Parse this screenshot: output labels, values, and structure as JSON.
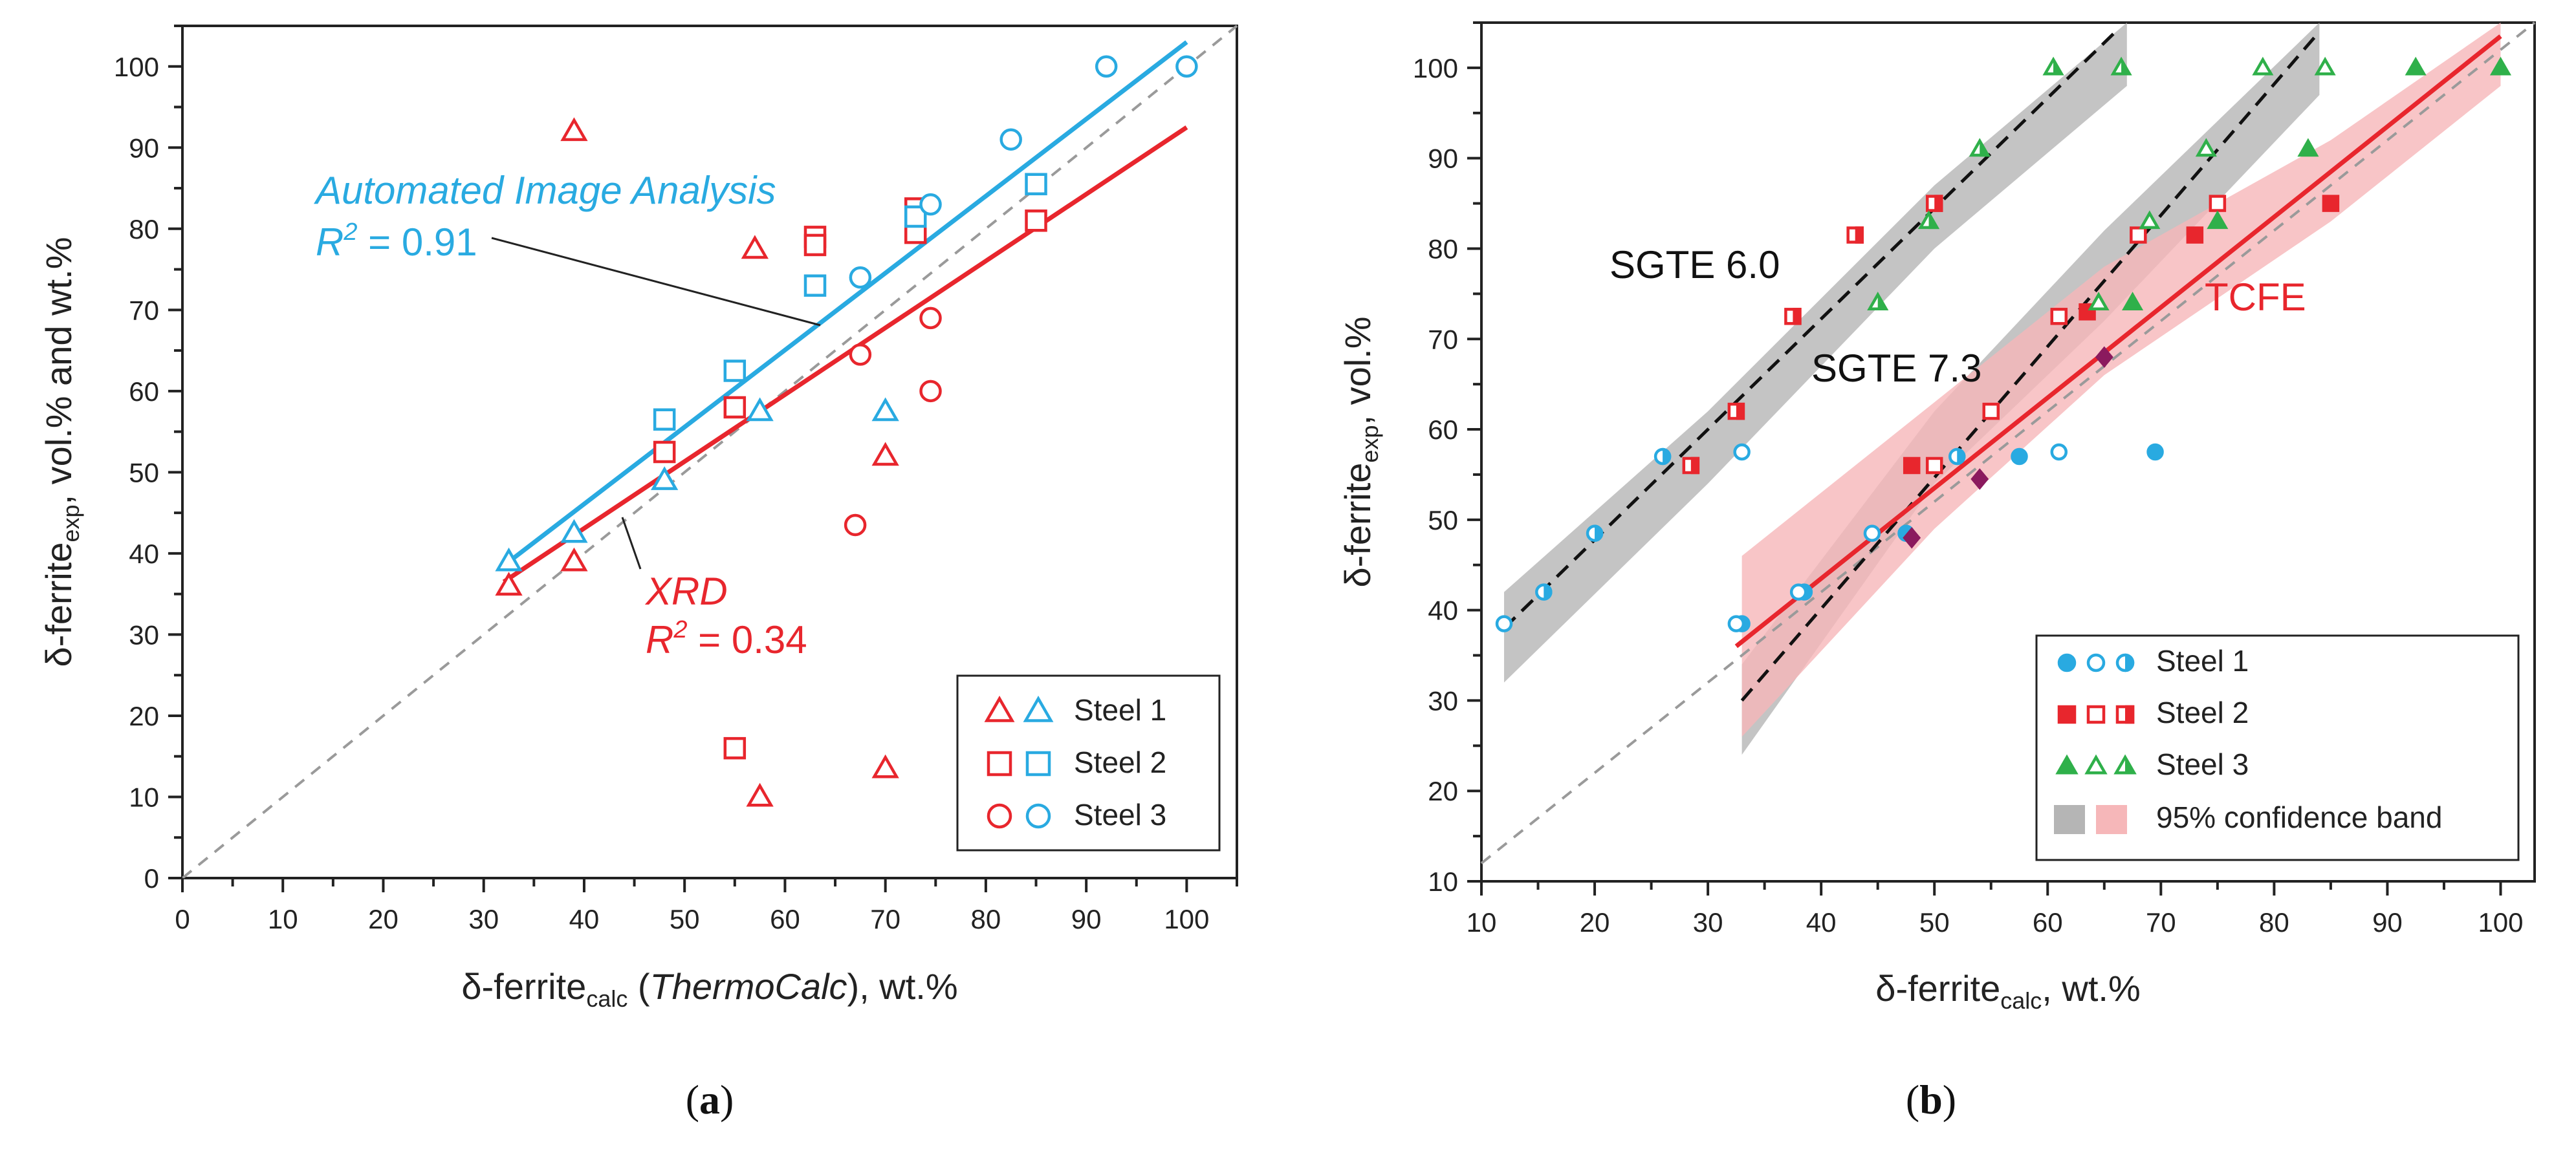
{
  "colors": {
    "red": "#e8262d",
    "blue": "#29aae1",
    "green": "#2fb04a",
    "purple": "#8b1a5e",
    "gray_dash": "#9a9a9a",
    "black_dash": "#111111",
    "gray_band": "#b5b5b5",
    "pink_band": "#f6b7b9"
  },
  "chart_data": [
    {
      "panel": "a",
      "type": "scatter",
      "panel_label": "a",
      "xlabel": {
        "main": "δ-ferrite",
        "sub": "calc",
        "italic": "ThermoCalc",
        "rest": ", wt.%"
      },
      "ylabel": {
        "main": "δ-ferrite",
        "sub": "exp",
        "rest": ", vol.% and wt.%"
      },
      "xlim": [
        0,
        105
      ],
      "ylim": [
        0,
        105
      ],
      "xticks": [
        0,
        10,
        20,
        30,
        40,
        50,
        60,
        70,
        80,
        90,
        100
      ],
      "yticks": [
        0,
        10,
        20,
        30,
        40,
        50,
        60,
        70,
        80,
        90,
        100
      ],
      "grid": false,
      "identity_line": [
        [
          0,
          0
        ],
        [
          105,
          105
        ]
      ],
      "series": [
        {
          "name": "XRD Steel 1",
          "color": "red",
          "marker": "triangle-open",
          "points": [
            [
              32.5,
              36
            ],
            [
              39,
              39
            ],
            [
              39,
              92
            ],
            [
              57.5,
              10
            ],
            [
              57,
              77.5
            ],
            [
              70,
              13.5
            ],
            [
              70,
              52
            ]
          ]
        },
        {
          "name": "XRD Steel 2",
          "color": "red",
          "marker": "square-open",
          "points": [
            [
              48,
              52.5
            ],
            [
              55,
              58
            ],
            [
              55,
              16
            ],
            [
              63,
              79
            ],
            [
              63,
              78
            ],
            [
              73,
              82.5
            ],
            [
              73,
              79.5
            ],
            [
              85,
              81
            ]
          ]
        },
        {
          "name": "XRD Steel 3",
          "color": "red",
          "marker": "circle-open",
          "points": [
            [
              67,
              43.5
            ],
            [
              67.5,
              64.5
            ],
            [
              74.5,
              60
            ],
            [
              74.5,
              69
            ]
          ]
        },
        {
          "name": "Image Steel 1",
          "color": "blue",
          "marker": "triangle-open",
          "points": [
            [
              32.5,
              39
            ],
            [
              39,
              42.5
            ],
            [
              48,
              49
            ],
            [
              57.5,
              57.5
            ],
            [
              70,
              57.5
            ]
          ]
        },
        {
          "name": "Image Steel 2",
          "color": "blue",
          "marker": "square-open",
          "points": [
            [
              48,
              56.5
            ],
            [
              55,
              62.5
            ],
            [
              63,
              73
            ],
            [
              73,
              81.5
            ],
            [
              85,
              85.5
            ]
          ]
        },
        {
          "name": "Image Steel 3",
          "color": "blue",
          "marker": "circle-open",
          "points": [
            [
              67.5,
              74
            ],
            [
              74.5,
              83
            ],
            [
              82.5,
              91
            ],
            [
              92,
              100
            ],
            [
              100,
              100
            ]
          ]
        }
      ],
      "fits": [
        {
          "name": "Automated Image Analysis",
          "color": "blue",
          "x": [
            32,
            100
          ],
          "y": [
            38.5,
            103
          ]
        },
        {
          "name": "XRD",
          "color": "red",
          "x": [
            32,
            100
          ],
          "y": [
            36.5,
            92.5
          ]
        }
      ],
      "annotations": [
        {
          "text": "Automated Image Analysis",
          "color": "blue",
          "italic": true
        },
        {
          "text_prefix": "R",
          "sup": "2",
          "text_suffix": " = 0.91",
          "color": "blue"
        },
        {
          "text": "XRD",
          "color": "red",
          "italic": true
        },
        {
          "text_prefix": "R",
          "sup": "2",
          "text_suffix": " = 0.34",
          "color": "red"
        }
      ],
      "legend": {
        "position": "bottom-right",
        "entries": [
          "Steel 1",
          "Steel 2",
          "Steel 3"
        ]
      }
    },
    {
      "panel": "b",
      "type": "scatter",
      "panel_label": "b",
      "xlabel": {
        "main": "δ-ferrite",
        "sub": "calc",
        "rest": ", wt.%"
      },
      "ylabel": {
        "main": "δ-ferrite",
        "sub": "exp",
        "rest": ", vol.%"
      },
      "xlim": [
        10,
        103
      ],
      "ylim": [
        10,
        105
      ],
      "xticks": [
        10,
        20,
        30,
        40,
        50,
        60,
        70,
        80,
        90,
        100
      ],
      "yticks": [
        10,
        20,
        30,
        40,
        50,
        60,
        70,
        80,
        90,
        100
      ],
      "grid": false,
      "identity_line": [
        [
          10,
          12
        ],
        [
          103,
          105
        ]
      ],
      "bands": [
        {
          "name": "SGTE 6.0",
          "color": "gray_band",
          "upper": [
            [
              12,
              42
            ],
            [
              30,
              62
            ],
            [
              50,
              87
            ],
            [
              67,
              106
            ]
          ],
          "lower": [
            [
              12,
              32
            ],
            [
              30,
              54
            ],
            [
              50,
              80
            ],
            [
              67,
              98
            ]
          ]
        },
        {
          "name": "SGTE 7.3",
          "color": "gray_band",
          "upper": [
            [
              33,
              34
            ],
            [
              50,
              62
            ],
            [
              65,
              82
            ],
            [
              84,
              106
            ]
          ],
          "lower": [
            [
              33,
              24
            ],
            [
              50,
              54
            ],
            [
              65,
              72
            ],
            [
              84,
              97
            ]
          ]
        },
        {
          "name": "TCFE",
          "color": "pink_band",
          "upper": [
            [
              33,
              46
            ],
            [
              50,
              63
            ],
            [
              65,
              78
            ],
            [
              85,
              92
            ],
            [
              100,
              106
            ]
          ],
          "lower": [
            [
              33,
              26
            ],
            [
              50,
              49
            ],
            [
              65,
              66
            ],
            [
              85,
              83
            ],
            [
              100,
              98
            ]
          ]
        }
      ],
      "fits": [
        {
          "name": "SGTE 6.0",
          "color": "black_dash",
          "dashed": true,
          "x": [
            12,
            66
          ],
          "y": [
            38,
            104
          ]
        },
        {
          "name": "SGTE 7.3",
          "color": "black_dash",
          "dashed": true,
          "x": [
            33,
            84
          ],
          "y": [
            30,
            104
          ]
        },
        {
          "name": "TCFE",
          "color": "red",
          "dashed": false,
          "x": [
            32.5,
            100
          ],
          "y": [
            36,
            103.5
          ]
        }
      ],
      "series": [
        {
          "name": "Steel 1 (TCFE)",
          "color": "blue",
          "marker": "circle-filled",
          "points": [
            [
              33,
              38.5
            ],
            [
              38.5,
              42
            ],
            [
              47.5,
              48.5
            ],
            [
              57.5,
              57
            ],
            [
              69.5,
              57.5
            ]
          ]
        },
        {
          "name": "Steel 1 (SGTE 6.0)",
          "color": "blue",
          "marker": "circle-open",
          "points": [
            [
              12,
              38.5
            ],
            [
              33,
              57.5
            ],
            [
              44.5,
              48.5
            ],
            [
              61,
              57.5
            ],
            [
              32.5,
              38.5
            ],
            [
              38,
              42
            ]
          ]
        },
        {
          "name": "Steel 1 (SGTE 7.3)",
          "color": "blue",
          "marker": "circle-half",
          "points": [
            [
              15.5,
              42
            ],
            [
              20,
              48.5
            ],
            [
              26,
              57
            ],
            [
              52,
              57
            ]
          ]
        },
        {
          "name": "Steel 2 (TCFE)",
          "color": "red",
          "marker": "square-filled",
          "points": [
            [
              48,
              56
            ],
            [
              63.5,
              73
            ],
            [
              73,
              81.5
            ],
            [
              85,
              85
            ]
          ]
        },
        {
          "name": "Steel 2 (SGTE 7.3)",
          "color": "red",
          "marker": "square-open",
          "points": [
            [
              50,
              56
            ],
            [
              55,
              62
            ],
            [
              61,
              72.5
            ],
            [
              68,
              81.5
            ],
            [
              75,
              85
            ]
          ]
        },
        {
          "name": "Steel 2 (SGTE 6.0)",
          "color": "red",
          "marker": "square-half",
          "points": [
            [
              28.5,
              56
            ],
            [
              32.5,
              62
            ],
            [
              37.5,
              72.5
            ],
            [
              43,
              81.5
            ],
            [
              50,
              85
            ]
          ]
        },
        {
          "name": "Steel 3 (TCFE)",
          "color": "green",
          "marker": "triangle-filled",
          "points": [
            [
              67.5,
              74
            ],
            [
              75,
              83
            ],
            [
              83,
              91
            ],
            [
              92.5,
              100
            ],
            [
              100,
              100
            ]
          ]
        },
        {
          "name": "Steel 3 (SGTE 7.3)",
          "color": "green",
          "marker": "triangle-open",
          "points": [
            [
              64.5,
              74
            ],
            [
              69,
              83
            ],
            [
              74,
              91
            ],
            [
              79,
              100
            ],
            [
              84.5,
              100
            ]
          ]
        },
        {
          "name": "Steel 3 (SGTE 6.0)",
          "color": "green",
          "marker": "triangle-half",
          "points": [
            [
              45,
              74
            ],
            [
              49.5,
              83
            ],
            [
              54,
              91
            ],
            [
              60.5,
              100
            ],
            [
              66.5,
              100
            ]
          ]
        },
        {
          "name": "Purple markers",
          "color": "purple",
          "marker": "diamond-filled",
          "points": [
            [
              48,
              48
            ],
            [
              54,
              54.5
            ],
            [
              65,
              68
            ]
          ]
        }
      ],
      "annotations": [
        {
          "text": "SGTE 6.0",
          "color": "black"
        },
        {
          "text": "SGTE 7.3",
          "color": "black"
        },
        {
          "text": "TCFE",
          "color": "red"
        }
      ],
      "legend": {
        "position": "bottom-right",
        "entries": [
          "Steel 1",
          "Steel 2",
          "Steel 3",
          "95% confidence band"
        ]
      }
    }
  ]
}
